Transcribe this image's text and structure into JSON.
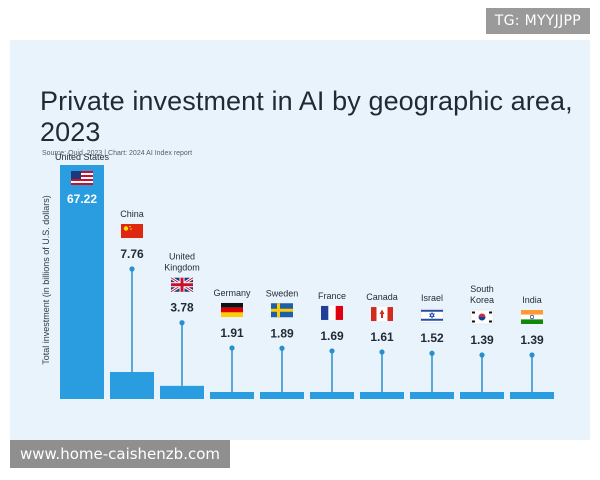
{
  "overlays": {
    "top_tag": "TG: MYYJJPP",
    "watermark": "www.home-caishenzb.com"
  },
  "colors": {
    "background": "#e8f3fb",
    "bar": "#2a9de1",
    "stem": "#2a8fcf",
    "text": "#1f2a36"
  },
  "chart_data": {
    "type": "bar",
    "title": "Private investment in AI by geographic area, 2023",
    "source": "Source: Quid, 2023 | Chart: 2024 AI Index report",
    "ylabel": "Total investment (in billions of U.S. dollars)",
    "xlabel": "",
    "categories": [
      "United States",
      "China",
      "United Kingdom",
      "Germany",
      "Sweden",
      "France",
      "Canada",
      "Israel",
      "South Korea",
      "India"
    ],
    "category_label_lines": [
      [
        "United States"
      ],
      [
        "China"
      ],
      [
        "United",
        "Kingdom"
      ],
      [
        "Germany"
      ],
      [
        "Sweden"
      ],
      [
        "France"
      ],
      [
        "Canada"
      ],
      [
        "Israel"
      ],
      [
        "South",
        "Korea"
      ],
      [
        "India"
      ]
    ],
    "values": [
      67.22,
      7.76,
      3.78,
      1.91,
      1.89,
      1.69,
      1.61,
      1.52,
      1.39,
      1.39
    ],
    "value_labels": [
      "67.22",
      "7.76",
      "3.78",
      "1.91",
      "1.89",
      "1.69",
      "1.61",
      "1.52",
      "1.39",
      "1.39"
    ],
    "flags": [
      "us-flag-icon",
      "cn-flag-icon",
      "uk-flag-icon",
      "de-flag-icon",
      "se-flag-icon",
      "fr-flag-icon",
      "ca-flag-icon",
      "il-flag-icon",
      "kr-flag-icon",
      "in-flag-icon"
    ],
    "ylim": [
      0,
      67.22
    ],
    "grid": false,
    "legend": "none"
  }
}
